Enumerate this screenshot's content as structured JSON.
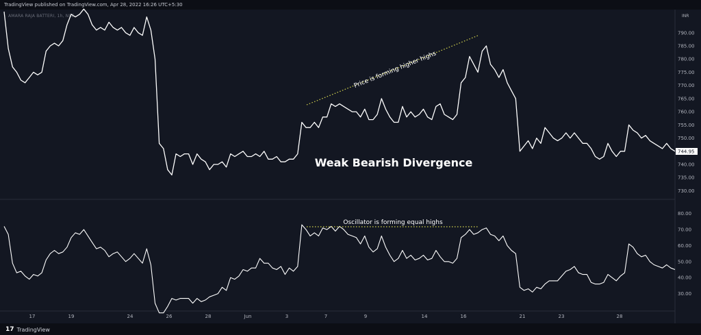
{
  "header": {
    "published_text": "TradingView published on TradingView.com, Apr 28, 2022 16:26 UTC+5:30",
    "symbol_text": "AMARA RAJA BATTERI, 1h, NSE",
    "currency": "INR"
  },
  "footer": {
    "brand_icon": "tradingview-logo-icon",
    "brand_label": "TradingView"
  },
  "colors": {
    "background": "#131722",
    "line": "#ffffff",
    "dotted": "#d8d850",
    "grid_text": "#b2b5be"
  },
  "chart_data": [
    {
      "type": "line",
      "title": "Weak Bearish Divergence",
      "annotation": "Price is forming higher highs",
      "y_ticks": [
        730,
        735,
        740,
        745,
        750,
        755,
        760,
        765,
        770,
        775,
        780,
        785,
        790
      ],
      "ylim": [
        727,
        798
      ],
      "last_price_label": "744.95",
      "x_ticks": [
        "17",
        "19",
        "24",
        "26",
        "28",
        "Jun",
        "3",
        "7",
        "9",
        "14",
        "16",
        "21",
        "23",
        "28"
      ],
      "series": [
        {
          "values": [
            798,
            784,
            777,
            775,
            772,
            771,
            773,
            775,
            774,
            775,
            783,
            785,
            786,
            785,
            787,
            793,
            797,
            796,
            797,
            799,
            797,
            793,
            791,
            792,
            791,
            794,
            792,
            791,
            792,
            790,
            789,
            792,
            790,
            789,
            796,
            791,
            780,
            748,
            746,
            738,
            736,
            744,
            743,
            744,
            744,
            740,
            744,
            742,
            741,
            738,
            740,
            740,
            741,
            739,
            744,
            743,
            744,
            745,
            743,
            743,
            744,
            743,
            745,
            742,
            742,
            743,
            741,
            741,
            742,
            742,
            744,
            756,
            754,
            754,
            756,
            754,
            758,
            758,
            763,
            762,
            763,
            762,
            761,
            760,
            760,
            758,
            761,
            757,
            757,
            759,
            765,
            761,
            758,
            756,
            756,
            762,
            758,
            760,
            758,
            759,
            761,
            758,
            757,
            762,
            763,
            759,
            758,
            757,
            759,
            771,
            773,
            781,
            778,
            775,
            783,
            785,
            778,
            776,
            773,
            776,
            771,
            768,
            765,
            745,
            747,
            749,
            746,
            750,
            748,
            754,
            752,
            750,
            749,
            750,
            752,
            750,
            752,
            750,
            748,
            748,
            746,
            743,
            742,
            743,
            748,
            745,
            743,
            745,
            745,
            755,
            753,
            752,
            750,
            751,
            749,
            748,
            747,
            746,
            748,
            746,
            745
          ]
        }
      ]
    },
    {
      "type": "line",
      "annotation": "Oscillator is forming equal highs",
      "y_ticks": [
        30,
        40,
        50,
        60,
        70,
        80
      ],
      "ylim": [
        20,
        85
      ],
      "series": [
        {
          "values": [
            72,
            67,
            49,
            43,
            44,
            41,
            39,
            42,
            41,
            43,
            51,
            55,
            57,
            55,
            56,
            59,
            65,
            68,
            67,
            70,
            66,
            62,
            58,
            59,
            57,
            53,
            55,
            56,
            53,
            50,
            52,
            55,
            52,
            49,
            58,
            48,
            24,
            18,
            18,
            22,
            27,
            26,
            27,
            27,
            27,
            24,
            27,
            25,
            26,
            28,
            29,
            30,
            34,
            32,
            40,
            39,
            41,
            45,
            44,
            46,
            46,
            52,
            49,
            49,
            46,
            45,
            47,
            42,
            46,
            44,
            47,
            73,
            70,
            66,
            68,
            66,
            71,
            70,
            72,
            69,
            72,
            70,
            67,
            66,
            65,
            61,
            66,
            59,
            56,
            58,
            66,
            59,
            54,
            50,
            52,
            57,
            52,
            54,
            51,
            52,
            54,
            51,
            52,
            57,
            53,
            50,
            50,
            49,
            52,
            65,
            67,
            70,
            67,
            68,
            70,
            71,
            67,
            66,
            63,
            66,
            60,
            57,
            55,
            34,
            32,
            33,
            31,
            34,
            33,
            36,
            38,
            38,
            38,
            41,
            44,
            45,
            47,
            43,
            42,
            42,
            37,
            36,
            36,
            37,
            42,
            40,
            38,
            41,
            43,
            61,
            59,
            55,
            53,
            54,
            50,
            48,
            47,
            46,
            48,
            46,
            45
          ]
        }
      ]
    }
  ]
}
